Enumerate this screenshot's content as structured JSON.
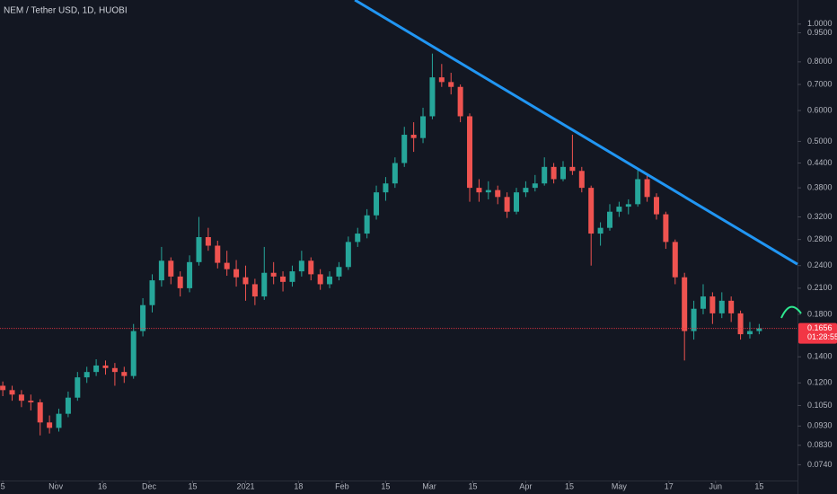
{
  "chart_data": {
    "type": "candlestick",
    "title": "NEM / Tether USD, 1D, HUOBI",
    "log_scale": true,
    "up_color": "#26a69a",
    "down_color": "#ef5350",
    "ohlc": [
      [
        0.118,
        0.121,
        0.111,
        0.115
      ],
      [
        0.115,
        0.118,
        0.108,
        0.112
      ],
      [
        0.112,
        0.115,
        0.104,
        0.108
      ],
      [
        0.108,
        0.112,
        0.102,
        0.107
      ],
      [
        0.107,
        0.109,
        0.088,
        0.095
      ],
      [
        0.095,
        0.099,
        0.089,
        0.092
      ],
      [
        0.092,
        0.103,
        0.09,
        0.1
      ],
      [
        0.1,
        0.114,
        0.098,
        0.11
      ],
      [
        0.11,
        0.128,
        0.108,
        0.124
      ],
      [
        0.124,
        0.132,
        0.12,
        0.128
      ],
      [
        0.128,
        0.138,
        0.125,
        0.133
      ],
      [
        0.133,
        0.137,
        0.126,
        0.131
      ],
      [
        0.131,
        0.135,
        0.118,
        0.128
      ],
      [
        0.128,
        0.132,
        0.12,
        0.125
      ],
      [
        0.125,
        0.17,
        0.123,
        0.163
      ],
      [
        0.163,
        0.198,
        0.158,
        0.19
      ],
      [
        0.19,
        0.228,
        0.182,
        0.22
      ],
      [
        0.22,
        0.268,
        0.212,
        0.247
      ],
      [
        0.247,
        0.252,
        0.215,
        0.225
      ],
      [
        0.225,
        0.232,
        0.2,
        0.21
      ],
      [
        0.21,
        0.255,
        0.205,
        0.245
      ],
      [
        0.245,
        0.32,
        0.24,
        0.284
      ],
      [
        0.284,
        0.3,
        0.262,
        0.27
      ],
      [
        0.27,
        0.278,
        0.236,
        0.244
      ],
      [
        0.244,
        0.262,
        0.226,
        0.235
      ],
      [
        0.235,
        0.248,
        0.212,
        0.224
      ],
      [
        0.224,
        0.24,
        0.195,
        0.215
      ],
      [
        0.215,
        0.222,
        0.19,
        0.2
      ],
      [
        0.2,
        0.268,
        0.196,
        0.23
      ],
      [
        0.23,
        0.245,
        0.215,
        0.225
      ],
      [
        0.225,
        0.232,
        0.206,
        0.218
      ],
      [
        0.218,
        0.24,
        0.212,
        0.232
      ],
      [
        0.232,
        0.262,
        0.225,
        0.247
      ],
      [
        0.247,
        0.252,
        0.22,
        0.228
      ],
      [
        0.228,
        0.235,
        0.208,
        0.215
      ],
      [
        0.215,
        0.232,
        0.21,
        0.225
      ],
      [
        0.225,
        0.245,
        0.22,
        0.238
      ],
      [
        0.238,
        0.285,
        0.234,
        0.276
      ],
      [
        0.276,
        0.3,
        0.268,
        0.29
      ],
      [
        0.29,
        0.335,
        0.282,
        0.323
      ],
      [
        0.323,
        0.385,
        0.315,
        0.37
      ],
      [
        0.37,
        0.405,
        0.352,
        0.39
      ],
      [
        0.39,
        0.455,
        0.38,
        0.44
      ],
      [
        0.44,
        0.545,
        0.43,
        0.52
      ],
      [
        0.52,
        0.56,
        0.47,
        0.51
      ],
      [
        0.51,
        0.61,
        0.495,
        0.58
      ],
      [
        0.58,
        0.84,
        0.57,
        0.73
      ],
      [
        0.73,
        0.79,
        0.69,
        0.71
      ],
      [
        0.71,
        0.75,
        0.66,
        0.69
      ],
      [
        0.69,
        0.7,
        0.56,
        0.58
      ],
      [
        0.58,
        0.59,
        0.35,
        0.38
      ],
      [
        0.38,
        0.4,
        0.35,
        0.37
      ],
      [
        0.37,
        0.395,
        0.355,
        0.375
      ],
      [
        0.375,
        0.385,
        0.345,
        0.36
      ],
      [
        0.36,
        0.37,
        0.318,
        0.33
      ],
      [
        0.33,
        0.38,
        0.325,
        0.37
      ],
      [
        0.37,
        0.395,
        0.36,
        0.38
      ],
      [
        0.38,
        0.41,
        0.372,
        0.39
      ],
      [
        0.39,
        0.455,
        0.385,
        0.43
      ],
      [
        0.43,
        0.44,
        0.39,
        0.4
      ],
      [
        0.4,
        0.445,
        0.395,
        0.43
      ],
      [
        0.43,
        0.52,
        0.41,
        0.42
      ],
      [
        0.42,
        0.43,
        0.37,
        0.38
      ],
      [
        0.38,
        0.385,
        0.24,
        0.29
      ],
      [
        0.29,
        0.31,
        0.27,
        0.3
      ],
      [
        0.3,
        0.345,
        0.295,
        0.33
      ],
      [
        0.33,
        0.35,
        0.32,
        0.34
      ],
      [
        0.34,
        0.355,
        0.325,
        0.345
      ],
      [
        0.345,
        0.425,
        0.34,
        0.4
      ],
      [
        0.4,
        0.41,
        0.35,
        0.36
      ],
      [
        0.36,
        0.368,
        0.315,
        0.325
      ],
      [
        0.325,
        0.33,
        0.265,
        0.276
      ],
      [
        0.276,
        0.28,
        0.215,
        0.224
      ],
      [
        0.224,
        0.23,
        0.137,
        0.163
      ],
      [
        0.163,
        0.195,
        0.155,
        0.186
      ],
      [
        0.186,
        0.215,
        0.18,
        0.2
      ],
      [
        0.2,
        0.205,
        0.17,
        0.181
      ],
      [
        0.181,
        0.205,
        0.176,
        0.195
      ],
      [
        0.195,
        0.2,
        0.172,
        0.181
      ],
      [
        0.181,
        0.184,
        0.155,
        0.16
      ],
      [
        0.16,
        0.172,
        0.156,
        0.163
      ],
      [
        0.163,
        0.17,
        0.16,
        0.1656
      ]
    ],
    "xlim": [
      -0.3,
      85.1
    ],
    "xticks": [
      {
        "value": 0,
        "label": "5"
      },
      {
        "value": 5.67,
        "label": "Nov"
      },
      {
        "value": 10.67,
        "label": "16"
      },
      {
        "value": 15.67,
        "label": "Dec"
      },
      {
        "value": 20.33,
        "label": "15"
      },
      {
        "value": 26,
        "label": "2021"
      },
      {
        "value": 31.67,
        "label": "18"
      },
      {
        "value": 36.33,
        "label": "Feb"
      },
      {
        "value": 41,
        "label": "15"
      },
      {
        "value": 45.67,
        "label": "Mar"
      },
      {
        "value": 50.33,
        "label": "15"
      },
      {
        "value": 56,
        "label": "Apr"
      },
      {
        "value": 60.67,
        "label": "15"
      },
      {
        "value": 66,
        "label": "May"
      },
      {
        "value": 71.33,
        "label": "17"
      },
      {
        "value": 76.33,
        "label": "Jun"
      },
      {
        "value": 81,
        "label": "15"
      }
    ],
    "ylim": [
      0.0674,
      1.153
    ],
    "yticks": [
      {
        "value": 1.0,
        "label": "1.0000"
      },
      {
        "value": 0.95,
        "label": "0.9500"
      },
      {
        "value": 0.8,
        "label": "0.8000"
      },
      {
        "value": 0.7,
        "label": "0.7000"
      },
      {
        "value": 0.6,
        "label": "0.6000"
      },
      {
        "value": 0.5,
        "label": "0.5000"
      },
      {
        "value": 0.44,
        "label": "0.4400"
      },
      {
        "value": 0.38,
        "label": "0.3800"
      },
      {
        "value": 0.32,
        "label": "0.3200"
      },
      {
        "value": 0.28,
        "label": "0.2800"
      },
      {
        "value": 0.24,
        "label": "0.2400"
      },
      {
        "value": 0.21,
        "label": "0.2100"
      },
      {
        "value": 0.18,
        "label": "0.1800"
      },
      {
        "value": 0.14,
        "label": "0.1400"
      },
      {
        "value": 0.12,
        "label": "0.1200"
      },
      {
        "value": 0.105,
        "label": "0.1050"
      },
      {
        "value": 0.093,
        "label": "0.0930"
      },
      {
        "value": 0.083,
        "label": "0.0830"
      },
      {
        "value": 0.074,
        "label": "0.0740"
      }
    ],
    "trendline": {
      "x": [
        37.7,
        85.1
      ],
      "y": [
        1.153,
        0.242
      ],
      "color": "#2196f3"
    },
    "last_price": {
      "value": 0.1656,
      "label": "0.1656",
      "countdown": "01:28:55",
      "color": "#f23645"
    }
  }
}
